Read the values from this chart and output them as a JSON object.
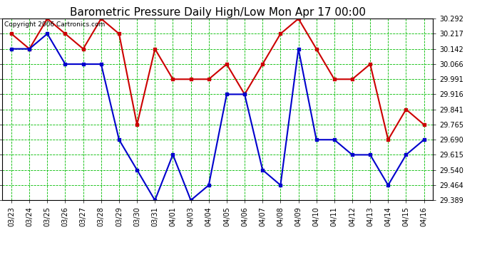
{
  "title": "Barometric Pressure Daily High/Low Mon Apr 17 00:00",
  "copyright": "Copyright 2006 Cartronics.com",
  "x_labels": [
    "03/23",
    "03/24",
    "03/25",
    "03/26",
    "03/27",
    "03/28",
    "03/29",
    "03/30",
    "03/31",
    "04/01",
    "04/03",
    "04/04",
    "04/05",
    "04/06",
    "04/07",
    "04/08",
    "04/09",
    "04/10",
    "04/11",
    "04/12",
    "04/13",
    "04/14",
    "04/15",
    "04/16"
  ],
  "high_values": [
    30.217,
    30.142,
    30.292,
    30.217,
    30.142,
    30.292,
    30.217,
    29.765,
    30.142,
    29.991,
    29.991,
    29.991,
    30.066,
    29.916,
    30.066,
    30.217,
    30.292,
    30.142,
    29.991,
    29.991,
    30.066,
    29.69,
    29.841,
    29.765
  ],
  "low_values": [
    30.142,
    30.142,
    30.217,
    30.066,
    30.066,
    30.066,
    29.69,
    29.54,
    29.389,
    29.616,
    29.389,
    29.464,
    29.916,
    29.916,
    29.54,
    29.464,
    30.142,
    29.69,
    29.69,
    29.615,
    29.615,
    29.464,
    29.615,
    29.69
  ],
  "y_ticks": [
    29.389,
    29.464,
    29.54,
    29.615,
    29.69,
    29.765,
    29.841,
    29.916,
    29.991,
    30.066,
    30.142,
    30.217,
    30.292
  ],
  "y_min": 29.389,
  "y_max": 30.292,
  "high_color": "#cc0000",
  "low_color": "#0000cc",
  "bg_color": "#ffffff",
  "grid_color": "#00bb00",
  "title_color": "#000000",
  "copyright_color": "#000000",
  "title_fontsize": 11,
  "copyright_fontsize": 6.5
}
